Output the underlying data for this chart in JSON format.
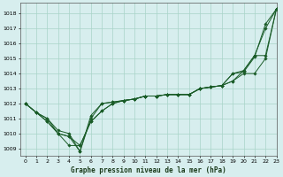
{
  "title": "Graphe pression niveau de la mer (hPa)",
  "hours": [
    0,
    1,
    2,
    3,
    4,
    5,
    6,
    7,
    8,
    9,
    10,
    11,
    12,
    13,
    14,
    15,
    16,
    17,
    18,
    19,
    20,
    21,
    22,
    23
  ],
  "xlim": [
    -0.5,
    23
  ],
  "ylim": [
    1008.5,
    1018.7
  ],
  "yticks": [
    1009,
    1010,
    1011,
    1012,
    1013,
    1014,
    1015,
    1016,
    1017,
    1018
  ],
  "background_color": "#d7eeee",
  "grid_color": "#a8d4c8",
  "line_color": "#1a5c28",
  "curves": [
    [
      1012.0,
      1011.4,
      1011.0,
      1010.0,
      1009.8,
      1008.8,
      1011.2,
      1012.0,
      1012.1,
      1012.2,
      1012.3,
      1012.5,
      1012.5,
      1012.6,
      1012.6,
      1012.6,
      1013.0,
      1013.1,
      1013.2,
      1014.0,
      1014.2,
      1015.2,
      1017.0,
      1018.3
    ],
    [
      1012.0,
      1011.4,
      1010.8,
      1010.0,
      1009.8,
      1009.2,
      1010.8,
      1011.5,
      1012.0,
      1012.2,
      1012.3,
      1012.5,
      1012.5,
      1012.6,
      1012.6,
      1012.6,
      1013.0,
      1013.1,
      1013.2,
      1013.5,
      1014.0,
      1014.0,
      1015.0,
      1018.3
    ],
    [
      1012.0,
      1011.4,
      1010.8,
      1010.0,
      1009.2,
      1009.2,
      1010.8,
      1011.5,
      1012.0,
      1012.2,
      1012.3,
      1012.5,
      1012.5,
      1012.6,
      1012.6,
      1012.6,
      1013.0,
      1013.1,
      1013.2,
      1013.5,
      1014.2,
      1015.2,
      1015.2,
      1018.3
    ],
    [
      1012.0,
      1011.4,
      1011.0,
      1010.2,
      1010.0,
      1008.8,
      1011.0,
      1012.0,
      1012.1,
      1012.2,
      1012.3,
      1012.5,
      1012.5,
      1012.6,
      1012.6,
      1012.6,
      1013.0,
      1013.1,
      1013.2,
      1014.0,
      1014.1,
      1015.1,
      1017.3,
      1018.3
    ]
  ]
}
